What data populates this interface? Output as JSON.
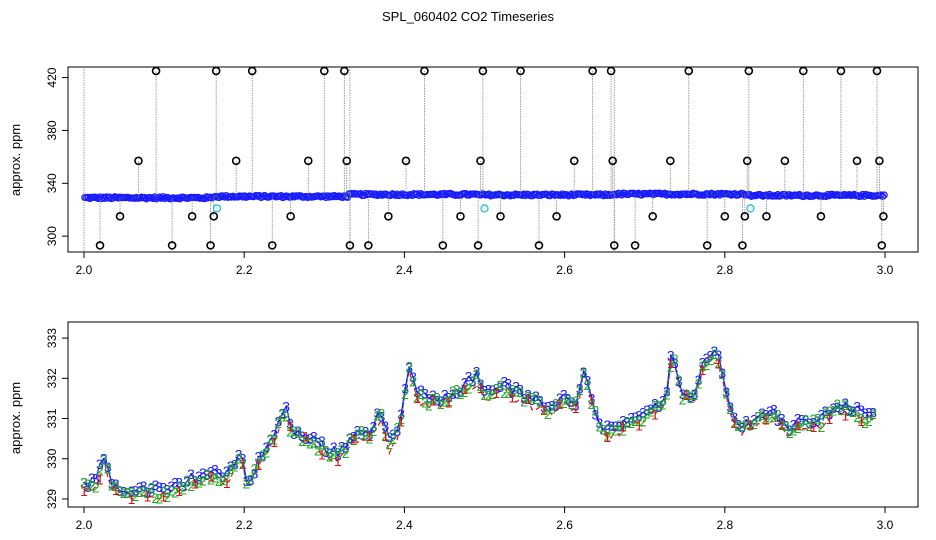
{
  "title": "SPL_060402  CO2 Timeseries",
  "colors": {
    "outlier_black": "#000000",
    "series_blue": "#1a1aff",
    "series_green": "#22aa22",
    "series_red": "#dd1111",
    "flag_cyan": "#33cccc",
    "spike_line": "#888888"
  },
  "chart_data": [
    {
      "type": "scatter",
      "panel": "top",
      "xlabel": "",
      "ylabel": "approx. ppm",
      "xlim": [
        2.0,
        3.0
      ],
      "ylim": [
        288,
        428
      ],
      "xticks": [
        "2.0",
        "2.2",
        "2.4",
        "2.6",
        "2.8",
        "3.0"
      ],
      "yticks": [
        "300",
        "340",
        "380",
        "420"
      ],
      "baseline": [
        {
          "x_range": [
            2.0,
            2.16
          ],
          "value": 329.0
        },
        {
          "x_range": [
            2.16,
            2.33
          ],
          "value": 330.0
        },
        {
          "x_range": [
            2.33,
            2.49
          ],
          "value": 331.5
        },
        {
          "x_range": [
            2.49,
            2.66
          ],
          "value": 331.2
        },
        {
          "x_range": [
            2.66,
            2.83
          ],
          "value": 331.8
        },
        {
          "x_range": [
            2.83,
            3.0
          ],
          "value": 330.8
        }
      ],
      "outliers": [
        {
          "x": 2.02,
          "y": 293
        },
        {
          "x": 2.045,
          "y": 315
        },
        {
          "x": 2.068,
          "y": 357
        },
        {
          "x": 2.09,
          "y": 425
        },
        {
          "x": 2.11,
          "y": 293
        },
        {
          "x": 2.135,
          "y": 315
        },
        {
          "x": 2.158,
          "y": 293
        },
        {
          "x": 2.162,
          "y": 315
        },
        {
          "x": 2.165,
          "y": 425
        },
        {
          "x": 2.19,
          "y": 357
        },
        {
          "x": 2.21,
          "y": 425
        },
        {
          "x": 2.235,
          "y": 293
        },
        {
          "x": 2.258,
          "y": 315
        },
        {
          "x": 2.28,
          "y": 357
        },
        {
          "x": 2.3,
          "y": 425
        },
        {
          "x": 2.325,
          "y": 425
        },
        {
          "x": 2.328,
          "y": 357
        },
        {
          "x": 2.332,
          "y": 293
        },
        {
          "x": 2.355,
          "y": 293
        },
        {
          "x": 2.38,
          "y": 315
        },
        {
          "x": 2.402,
          "y": 357
        },
        {
          "x": 2.425,
          "y": 425
        },
        {
          "x": 2.448,
          "y": 293
        },
        {
          "x": 2.47,
          "y": 315
        },
        {
          "x": 2.492,
          "y": 293
        },
        {
          "x": 2.495,
          "y": 357
        },
        {
          "x": 2.498,
          "y": 425
        },
        {
          "x": 2.52,
          "y": 315
        },
        {
          "x": 2.545,
          "y": 425
        },
        {
          "x": 2.568,
          "y": 293
        },
        {
          "x": 2.59,
          "y": 315
        },
        {
          "x": 2.612,
          "y": 357
        },
        {
          "x": 2.635,
          "y": 425
        },
        {
          "x": 2.658,
          "y": 425
        },
        {
          "x": 2.66,
          "y": 357
        },
        {
          "x": 2.662,
          "y": 293
        },
        {
          "x": 2.688,
          "y": 293
        },
        {
          "x": 2.71,
          "y": 315
        },
        {
          "x": 2.732,
          "y": 357
        },
        {
          "x": 2.755,
          "y": 425
        },
        {
          "x": 2.778,
          "y": 293
        },
        {
          "x": 2.8,
          "y": 315
        },
        {
          "x": 2.822,
          "y": 293
        },
        {
          "x": 2.825,
          "y": 315
        },
        {
          "x": 2.828,
          "y": 357
        },
        {
          "x": 2.83,
          "y": 425
        },
        {
          "x": 2.852,
          "y": 315
        },
        {
          "x": 2.875,
          "y": 357
        },
        {
          "x": 2.898,
          "y": 425
        },
        {
          "x": 2.92,
          "y": 315
        },
        {
          "x": 2.945,
          "y": 425
        },
        {
          "x": 2.965,
          "y": 357
        },
        {
          "x": 2.99,
          "y": 425
        },
        {
          "x": 2.993,
          "y": 357
        },
        {
          "x": 2.996,
          "y": 293
        },
        {
          "x": 2.998,
          "y": 315
        }
      ],
      "cyan_flags": [
        {
          "x": 2.166,
          "y": 321
        },
        {
          "x": 2.5,
          "y": 321
        },
        {
          "x": 2.832,
          "y": 321
        }
      ]
    },
    {
      "type": "line",
      "panel": "bottom",
      "xlabel": "",
      "ylabel": "approx. ppm",
      "xlim": [
        2.0,
        3.0
      ],
      "ylim": [
        328.8,
        333.4
      ],
      "xticks": [
        "2.0",
        "2.2",
        "2.4",
        "2.6",
        "2.8",
        "3.0"
      ],
      "yticks": [
        "329",
        "330",
        "331",
        "332",
        "333"
      ],
      "series": [
        {
          "name": "1",
          "marker": "1",
          "color": "red"
        },
        {
          "name": "2",
          "marker": "2",
          "color": "green"
        },
        {
          "name": "3",
          "marker": "3",
          "color": "blue"
        }
      ],
      "anchor_points": [
        {
          "x": 2.0,
          "y": 329.3
        },
        {
          "x": 2.015,
          "y": 329.4
        },
        {
          "x": 2.025,
          "y": 330.0
        },
        {
          "x": 2.035,
          "y": 329.3
        },
        {
          "x": 2.06,
          "y": 329.1
        },
        {
          "x": 2.08,
          "y": 329.2
        },
        {
          "x": 2.1,
          "y": 329.1
        },
        {
          "x": 2.12,
          "y": 329.3
        },
        {
          "x": 2.14,
          "y": 329.5
        },
        {
          "x": 2.16,
          "y": 329.6
        },
        {
          "x": 2.18,
          "y": 329.5
        },
        {
          "x": 2.195,
          "y": 330.1
        },
        {
          "x": 2.205,
          "y": 329.3
        },
        {
          "x": 2.22,
          "y": 330.0
        },
        {
          "x": 2.24,
          "y": 330.6
        },
        {
          "x": 2.25,
          "y": 331.3
        },
        {
          "x": 2.26,
          "y": 330.6
        },
        {
          "x": 2.28,
          "y": 330.5
        },
        {
          "x": 2.3,
          "y": 330.2
        },
        {
          "x": 2.32,
          "y": 330.1
        },
        {
          "x": 2.34,
          "y": 330.6
        },
        {
          "x": 2.36,
          "y": 330.6
        },
        {
          "x": 2.37,
          "y": 331.2
        },
        {
          "x": 2.38,
          "y": 330.3
        },
        {
          "x": 2.395,
          "y": 330.8
        },
        {
          "x": 2.405,
          "y": 332.3
        },
        {
          "x": 2.415,
          "y": 331.6
        },
        {
          "x": 2.43,
          "y": 331.4
        },
        {
          "x": 2.45,
          "y": 331.5
        },
        {
          "x": 2.47,
          "y": 331.7
        },
        {
          "x": 2.49,
          "y": 332.0
        },
        {
          "x": 2.5,
          "y": 331.6
        },
        {
          "x": 2.52,
          "y": 331.8
        },
        {
          "x": 2.54,
          "y": 331.6
        },
        {
          "x": 2.56,
          "y": 331.4
        },
        {
          "x": 2.58,
          "y": 331.2
        },
        {
          "x": 2.6,
          "y": 331.5
        },
        {
          "x": 2.615,
          "y": 331.3
        },
        {
          "x": 2.625,
          "y": 332.3
        },
        {
          "x": 2.635,
          "y": 331.3
        },
        {
          "x": 2.65,
          "y": 330.6
        },
        {
          "x": 2.67,
          "y": 330.8
        },
        {
          "x": 2.69,
          "y": 330.9
        },
        {
          "x": 2.71,
          "y": 331.2
        },
        {
          "x": 2.725,
          "y": 331.3
        },
        {
          "x": 2.735,
          "y": 332.7
        },
        {
          "x": 2.745,
          "y": 331.6
        },
        {
          "x": 2.76,
          "y": 331.5
        },
        {
          "x": 2.775,
          "y": 332.4
        },
        {
          "x": 2.79,
          "y": 332.6
        },
        {
          "x": 2.8,
          "y": 331.7
        },
        {
          "x": 2.81,
          "y": 331.0
        },
        {
          "x": 2.82,
          "y": 330.7
        },
        {
          "x": 2.84,
          "y": 331.0
        },
        {
          "x": 2.86,
          "y": 331.1
        },
        {
          "x": 2.88,
          "y": 330.7
        },
        {
          "x": 2.9,
          "y": 330.9
        },
        {
          "x": 2.92,
          "y": 330.9
        },
        {
          "x": 2.94,
          "y": 331.3
        },
        {
          "x": 2.96,
          "y": 331.2
        },
        {
          "x": 2.975,
          "y": 331.0
        },
        {
          "x": 2.985,
          "y": 331.1
        }
      ]
    }
  ]
}
